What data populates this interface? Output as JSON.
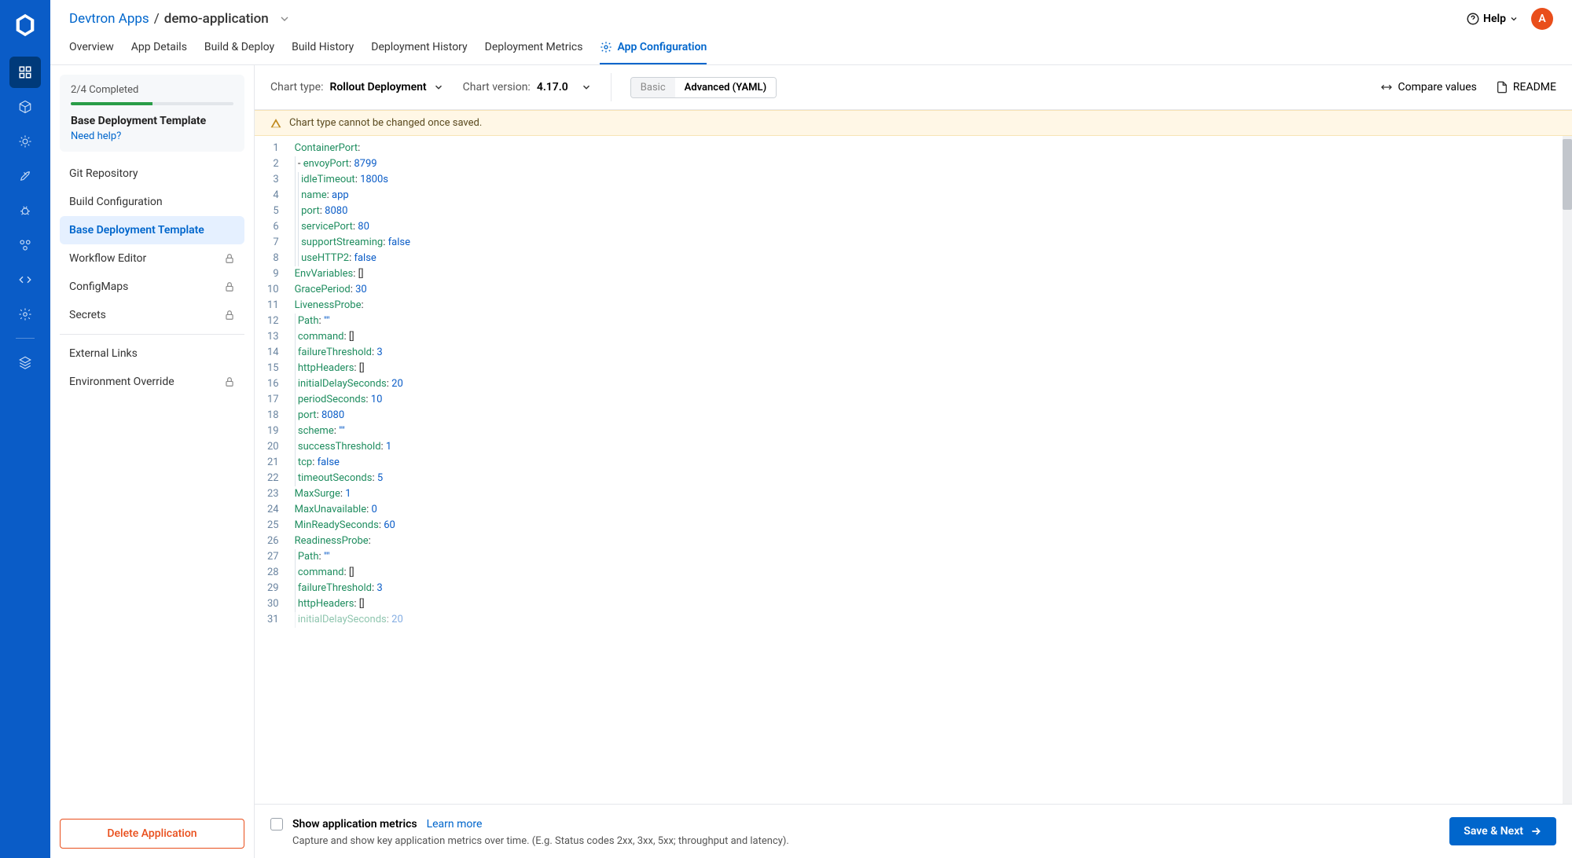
{
  "header": {
    "breadcrumb_root": "Devtron Apps",
    "breadcrumb_current": "demo-application",
    "help_label": "Help",
    "avatar_initial": "A"
  },
  "tabs": [
    {
      "id": "overview",
      "label": "Overview",
      "active": false
    },
    {
      "id": "app-details",
      "label": "App Details",
      "active": false
    },
    {
      "id": "build-deploy",
      "label": "Build & Deploy",
      "active": false
    },
    {
      "id": "build-history",
      "label": "Build History",
      "active": false
    },
    {
      "id": "deployment-history",
      "label": "Deployment History",
      "active": false
    },
    {
      "id": "deployment-metrics",
      "label": "Deployment Metrics",
      "active": false
    },
    {
      "id": "app-configuration",
      "label": "App Configuration",
      "active": true,
      "icon": true
    }
  ],
  "sidebar": {
    "progress_text": "2/4 Completed",
    "progress_pct": 50,
    "progress_title": "Base Deployment Template",
    "need_help": "Need help?",
    "items": [
      {
        "id": "git-repository",
        "label": "Git Repository",
        "locked": false,
        "active": false
      },
      {
        "id": "build-configuration",
        "label": "Build Configuration",
        "locked": false,
        "active": false
      },
      {
        "id": "base-deployment-template",
        "label": "Base Deployment Template",
        "locked": false,
        "active": true
      },
      {
        "id": "workflow-editor",
        "label": "Workflow Editor",
        "locked": true,
        "active": false
      },
      {
        "id": "configmaps",
        "label": "ConfigMaps",
        "locked": true,
        "active": false
      },
      {
        "id": "secrets",
        "label": "Secrets",
        "locked": true,
        "active": false
      }
    ],
    "items2": [
      {
        "id": "external-links",
        "label": "External Links",
        "locked": false
      },
      {
        "id": "environment-override",
        "label": "Environment Override",
        "locked": true
      }
    ],
    "delete_label": "Delete Application"
  },
  "toolbar": {
    "chart_type_label": "Chart type:",
    "chart_type_value": "Rollout Deployment",
    "chart_version_label": "Chart version:",
    "chart_version_value": "4.17.0",
    "basic_label": "Basic",
    "advanced_label": "Advanced (YAML)",
    "compare_label": "Compare values",
    "readme_label": "README"
  },
  "notice": "Chart type cannot be changed once saved.",
  "editor": {
    "lines": [
      {
        "n": 1,
        "indent": 0,
        "tokens": [
          [
            "key",
            "ContainerPort"
          ],
          [
            "punct",
            ":"
          ]
        ]
      },
      {
        "n": 2,
        "indent": 1,
        "tokens": [
          [
            "dash",
            "- "
          ],
          [
            "key",
            "envoyPort"
          ],
          [
            "punct",
            ": "
          ],
          [
            "num",
            "8799"
          ]
        ]
      },
      {
        "n": 3,
        "indent": 2,
        "tokens": [
          [
            "key",
            "idleTimeout"
          ],
          [
            "punct",
            ": "
          ],
          [
            "num",
            "1800s"
          ]
        ]
      },
      {
        "n": 4,
        "indent": 2,
        "tokens": [
          [
            "key",
            "name"
          ],
          [
            "punct",
            ": "
          ],
          [
            "num",
            "app"
          ]
        ]
      },
      {
        "n": 5,
        "indent": 2,
        "tokens": [
          [
            "key",
            "port"
          ],
          [
            "punct",
            ": "
          ],
          [
            "num",
            "8080"
          ]
        ]
      },
      {
        "n": 6,
        "indent": 2,
        "tokens": [
          [
            "key",
            "servicePort"
          ],
          [
            "punct",
            ": "
          ],
          [
            "num",
            "80"
          ]
        ]
      },
      {
        "n": 7,
        "indent": 2,
        "tokens": [
          [
            "key",
            "supportStreaming"
          ],
          [
            "punct",
            ": "
          ],
          [
            "bool",
            "false"
          ]
        ]
      },
      {
        "n": 8,
        "indent": 2,
        "tokens": [
          [
            "key",
            "useHTTP2"
          ],
          [
            "punct",
            ": "
          ],
          [
            "bool",
            "false"
          ]
        ]
      },
      {
        "n": 9,
        "indent": 0,
        "tokens": [
          [
            "key",
            "EnvVariables"
          ],
          [
            "punct",
            ": "
          ],
          [
            "punct",
            "[]"
          ]
        ]
      },
      {
        "n": 10,
        "indent": 0,
        "tokens": [
          [
            "key",
            "GracePeriod"
          ],
          [
            "punct",
            ": "
          ],
          [
            "num",
            "30"
          ]
        ]
      },
      {
        "n": 11,
        "indent": 0,
        "tokens": [
          [
            "key",
            "LivenessProbe"
          ],
          [
            "punct",
            ":"
          ]
        ]
      },
      {
        "n": 12,
        "indent": 1,
        "tokens": [
          [
            "key",
            "Path"
          ],
          [
            "punct",
            ": "
          ],
          [
            "str",
            "\"\""
          ]
        ]
      },
      {
        "n": 13,
        "indent": 1,
        "tokens": [
          [
            "key",
            "command"
          ],
          [
            "punct",
            ": "
          ],
          [
            "punct",
            "[]"
          ]
        ]
      },
      {
        "n": 14,
        "indent": 1,
        "tokens": [
          [
            "key",
            "failureThreshold"
          ],
          [
            "punct",
            ": "
          ],
          [
            "num",
            "3"
          ]
        ]
      },
      {
        "n": 15,
        "indent": 1,
        "tokens": [
          [
            "key",
            "httpHeaders"
          ],
          [
            "punct",
            ": "
          ],
          [
            "punct",
            "[]"
          ]
        ]
      },
      {
        "n": 16,
        "indent": 1,
        "tokens": [
          [
            "key",
            "initialDelaySeconds"
          ],
          [
            "punct",
            ": "
          ],
          [
            "num",
            "20"
          ]
        ]
      },
      {
        "n": 17,
        "indent": 1,
        "tokens": [
          [
            "key",
            "periodSeconds"
          ],
          [
            "punct",
            ": "
          ],
          [
            "num",
            "10"
          ]
        ]
      },
      {
        "n": 18,
        "indent": 1,
        "tokens": [
          [
            "key",
            "port"
          ],
          [
            "punct",
            ": "
          ],
          [
            "num",
            "8080"
          ]
        ]
      },
      {
        "n": 19,
        "indent": 1,
        "tokens": [
          [
            "key",
            "scheme"
          ],
          [
            "punct",
            ": "
          ],
          [
            "str",
            "\"\""
          ]
        ]
      },
      {
        "n": 20,
        "indent": 1,
        "tokens": [
          [
            "key",
            "successThreshold"
          ],
          [
            "punct",
            ": "
          ],
          [
            "num",
            "1"
          ]
        ]
      },
      {
        "n": 21,
        "indent": 1,
        "tokens": [
          [
            "key",
            "tcp"
          ],
          [
            "punct",
            ": "
          ],
          [
            "bool",
            "false"
          ]
        ]
      },
      {
        "n": 22,
        "indent": 1,
        "tokens": [
          [
            "key",
            "timeoutSeconds"
          ],
          [
            "punct",
            ": "
          ],
          [
            "num",
            "5"
          ]
        ]
      },
      {
        "n": 23,
        "indent": 0,
        "tokens": [
          [
            "key",
            "MaxSurge"
          ],
          [
            "punct",
            ": "
          ],
          [
            "num",
            "1"
          ]
        ]
      },
      {
        "n": 24,
        "indent": 0,
        "tokens": [
          [
            "key",
            "MaxUnavailable"
          ],
          [
            "punct",
            ": "
          ],
          [
            "num",
            "0"
          ]
        ]
      },
      {
        "n": 25,
        "indent": 0,
        "tokens": [
          [
            "key",
            "MinReadySeconds"
          ],
          [
            "punct",
            ": "
          ],
          [
            "num",
            "60"
          ]
        ]
      },
      {
        "n": 26,
        "indent": 0,
        "tokens": [
          [
            "key",
            "ReadinessProbe"
          ],
          [
            "punct",
            ":"
          ]
        ]
      },
      {
        "n": 27,
        "indent": 1,
        "tokens": [
          [
            "key",
            "Path"
          ],
          [
            "punct",
            ": "
          ],
          [
            "str",
            "\"\""
          ]
        ]
      },
      {
        "n": 28,
        "indent": 1,
        "tokens": [
          [
            "key",
            "command"
          ],
          [
            "punct",
            ": "
          ],
          [
            "punct",
            "[]"
          ]
        ]
      },
      {
        "n": 29,
        "indent": 1,
        "tokens": [
          [
            "key",
            "failureThreshold"
          ],
          [
            "punct",
            ": "
          ],
          [
            "num",
            "3"
          ]
        ]
      },
      {
        "n": 30,
        "indent": 1,
        "tokens": [
          [
            "key",
            "httpHeaders"
          ],
          [
            "punct",
            ": "
          ],
          [
            "punct",
            "[]"
          ]
        ]
      },
      {
        "n": 31,
        "indent": 1,
        "tokens": [
          [
            "key",
            "initialDelaySeconds"
          ],
          [
            "punct",
            ": "
          ],
          [
            "num",
            "20"
          ]
        ]
      }
    ]
  },
  "footer": {
    "metrics_title": "Show application metrics",
    "learn_more": "Learn more",
    "metrics_desc": "Capture and show key application metrics over time. (E.g. Status codes 2xx, 3xx, 5xx; throughput and latency).",
    "save_label": "Save & Next"
  },
  "colors": {
    "rail": "#0a5cc7",
    "primary": "#0066cc",
    "success": "#2a9d47",
    "danger": "#e94e1b",
    "notice_bg": "#fff7e6"
  }
}
